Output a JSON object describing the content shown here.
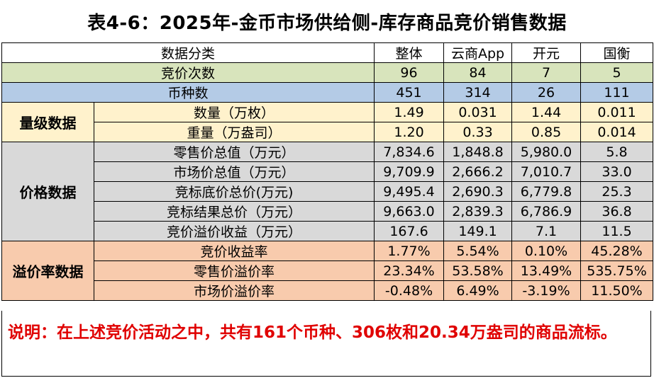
{
  "title": "表4-6：2025年-金币市场供给侧-库存商品竞价销售数据",
  "header": {
    "label": "数据分类",
    "cols": [
      "整体",
      "云商App",
      "开元",
      "国衡"
    ]
  },
  "rows": {
    "bids": {
      "label": "竞价次数",
      "values": [
        "96",
        "84",
        "7",
        "5"
      ]
    },
    "kinds": {
      "label": "币种数",
      "values": [
        "451",
        "314",
        "26",
        "111"
      ]
    }
  },
  "groups": {
    "volume": {
      "label": "量级数据",
      "rows": [
        {
          "label": "数量（万枚）",
          "values": [
            "1.49",
            "0.031",
            "1.44",
            "0.011"
          ]
        },
        {
          "label": "重量（万盎司）",
          "values": [
            "1.20",
            "0.33",
            "0.85",
            "0.014"
          ]
        }
      ]
    },
    "price": {
      "label": "价格数据",
      "rows": [
        {
          "label": "零售价总值（万元）",
          "values": [
            "7,834.6",
            "1,848.8",
            "5,980.0",
            "5.8"
          ]
        },
        {
          "label": "市场价总值（万元）",
          "values": [
            "9,709.9",
            "2,666.2",
            "7,010.7",
            "33.0"
          ]
        },
        {
          "label": "竞标底价总价(万元)",
          "values": [
            "9,495.4",
            "2,690.3",
            "6,779.8",
            "25.3"
          ]
        },
        {
          "label": "竞标结果总价（万元）",
          "values": [
            "9,663.0",
            "2,839.3",
            "6,786.9",
            "36.8"
          ]
        },
        {
          "label": "竞价溢价收益（万元）",
          "values": [
            "167.6",
            "149.1",
            "7.1",
            "11.5"
          ]
        }
      ]
    },
    "premium": {
      "label": "溢价率数据",
      "rows": [
        {
          "label": "竞价收益率",
          "values": [
            "1.77%",
            "5.54%",
            "0.10%",
            "45.28%"
          ]
        },
        {
          "label": "零售价溢价率",
          "values": [
            "23.34%",
            "53.58%",
            "13.49%",
            "535.75%"
          ]
        },
        {
          "label": "市场价溢价率",
          "values": [
            "-0.48%",
            "6.49%",
            "-3.19%",
            "11.50%"
          ]
        }
      ]
    }
  },
  "note": "说明：在上述竞价活动之中，共有161个币种、306枚和20.34万盎司的商品流标。"
}
